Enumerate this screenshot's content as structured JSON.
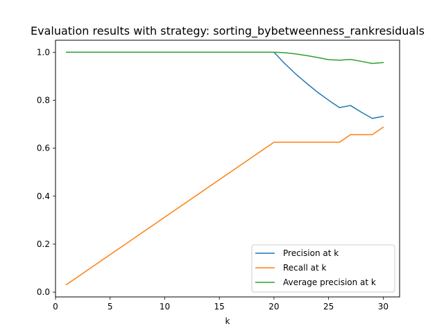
{
  "chart_data": {
    "type": "line",
    "title": "Evaluation results with strategy: sorting_bybetweenness_rankresiduals",
    "xlabel": "k",
    "ylabel": "",
    "xlim": [
      0,
      31.5
    ],
    "ylim": [
      -0.02,
      1.05
    ],
    "x_ticks": [
      0,
      5,
      10,
      15,
      20,
      25,
      30
    ],
    "y_ticks": [
      0.0,
      0.2,
      0.4,
      0.6,
      0.8,
      1.0
    ],
    "x_tick_labels": [
      "0",
      "5",
      "10",
      "15",
      "20",
      "25",
      "30"
    ],
    "y_tick_labels": [
      "0.0",
      "0.2",
      "0.4",
      "0.6",
      "0.8",
      "1.0"
    ],
    "grid": false,
    "legend_position": "lower-right",
    "x": [
      1,
      2,
      3,
      4,
      5,
      6,
      7,
      8,
      9,
      10,
      11,
      12,
      13,
      14,
      15,
      16,
      17,
      18,
      19,
      20,
      21,
      22,
      23,
      24,
      25,
      26,
      27,
      28,
      29,
      30
    ],
    "series": [
      {
        "name": "Precision at k",
        "color": "#1f77b4",
        "values": [
          1,
          1,
          1,
          1,
          1,
          1,
          1,
          1,
          1,
          1,
          1,
          1,
          1,
          1,
          1,
          1,
          1,
          1,
          1,
          1,
          0.952,
          0.909,
          0.87,
          0.833,
          0.8,
          0.769,
          0.778,
          0.75,
          0.724,
          0.733
        ]
      },
      {
        "name": "Recall at k",
        "color": "#ff7f0e",
        "values": [
          0.03125,
          0.0625,
          0.09375,
          0.125,
          0.15625,
          0.1875,
          0.21875,
          0.25,
          0.28125,
          0.3125,
          0.34375,
          0.375,
          0.40625,
          0.4375,
          0.46875,
          0.5,
          0.53125,
          0.5625,
          0.59375,
          0.625,
          0.625,
          0.625,
          0.625,
          0.625,
          0.625,
          0.625,
          0.65625,
          0.65625,
          0.65625,
          0.6875
        ]
      },
      {
        "name": "Average precision at k",
        "color": "#2ca02c",
        "values": [
          1,
          1,
          1,
          1,
          1,
          1,
          1,
          1,
          1,
          1,
          1,
          1,
          1,
          1,
          1,
          1,
          1,
          1,
          1,
          1,
          0.998,
          0.993,
          0.986,
          0.978,
          0.969,
          0.967,
          0.97,
          0.962,
          0.953,
          0.957
        ]
      }
    ]
  }
}
